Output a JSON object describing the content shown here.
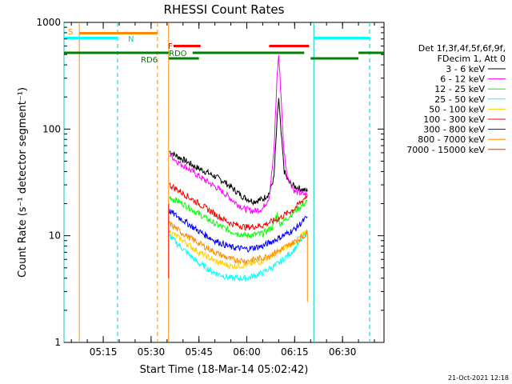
{
  "chart_data": {
    "type": "line",
    "title": "RHESSI Count Rates",
    "xlabel": "Start Time (18-Mar-14 05:02:42)",
    "ylabel": "Count Rate (s⁻¹ detector segment⁻¹)",
    "yscale": "log",
    "ylim": [
      1,
      1000
    ],
    "xlim": [
      "05:02:42",
      "06:43:00"
    ],
    "x_ticks": [
      "05:15",
      "05:30",
      "05:45",
      "06:00",
      "06:15",
      "06:30"
    ],
    "y_ticks": [
      "1",
      "10",
      "100",
      "1000"
    ],
    "footer_date": "21-Oct-2021 12:18",
    "legend": {
      "placement": "right",
      "header": [
        "Det 1f,3f,4f,5f,6f,9f,",
        "FDecim 1, Att 0"
      ]
    },
    "series": [
      {
        "name": "3 - 6 keV",
        "color": "#000000",
        "points": [
          [
            "05:35:45",
            62
          ],
          [
            "05:38:00",
            56
          ],
          [
            "05:41:00",
            50
          ],
          [
            "05:44:00",
            44
          ],
          [
            "05:47:00",
            40
          ],
          [
            "05:50:00",
            36
          ],
          [
            "05:53:00",
            32
          ],
          [
            "05:56:00",
            27
          ],
          [
            "05:59:00",
            23
          ],
          [
            "06:02:00",
            21
          ],
          [
            "06:05:00",
            22
          ],
          [
            "06:07:00",
            25
          ],
          [
            "06:08:30",
            35
          ],
          [
            "06:09:30",
            120
          ],
          [
            "06:10:00",
            195
          ],
          [
            "06:10:45",
            90
          ],
          [
            "06:11:45",
            40
          ],
          [
            "06:13:00",
            32
          ],
          [
            "06:15:00",
            29
          ],
          [
            "06:19:00",
            26
          ]
        ]
      },
      {
        "name": "6 - 12 keV",
        "color": "#ff00ff",
        "points": [
          [
            "05:35:45",
            58
          ],
          [
            "05:38:00",
            50
          ],
          [
            "05:41:00",
            44
          ],
          [
            "05:44:00",
            38
          ],
          [
            "05:47:00",
            33
          ],
          [
            "05:50:00",
            29
          ],
          [
            "05:53:00",
            25
          ],
          [
            "05:56:00",
            21
          ],
          [
            "05:59:00",
            18
          ],
          [
            "06:02:00",
            17
          ],
          [
            "06:05:00",
            18
          ],
          [
            "06:07:00",
            23
          ],
          [
            "06:08:30",
            60
          ],
          [
            "06:09:30",
            320
          ],
          [
            "06:10:00",
            500
          ],
          [
            "06:10:45",
            200
          ],
          [
            "06:11:30",
            70
          ],
          [
            "06:12:30",
            38
          ],
          [
            "06:15:00",
            26
          ],
          [
            "06:19:00",
            24
          ]
        ]
      },
      {
        "name": "12 - 25 keV",
        "color": "#00ff00",
        "points": [
          [
            "05:35:45",
            23
          ],
          [
            "05:40:00",
            20
          ],
          [
            "05:45:00",
            16
          ],
          [
            "05:50:00",
            13
          ],
          [
            "05:55:00",
            11
          ],
          [
            "06:00:00",
            10
          ],
          [
            "06:05:00",
            10.5
          ],
          [
            "06:08:00",
            12
          ],
          [
            "06:09:30",
            16
          ],
          [
            "06:10:15",
            13
          ],
          [
            "06:12:00",
            14
          ],
          [
            "06:15:00",
            17
          ],
          [
            "06:19:00",
            21
          ]
        ]
      },
      {
        "name": "25 - 50 keV",
        "color": "#00ffff",
        "points": [
          [
            "05:35:45",
            10
          ],
          [
            "05:40:00",
            7.5
          ],
          [
            "05:45:00",
            5.5
          ],
          [
            "05:50:00",
            4.5
          ],
          [
            "05:55:00",
            4
          ],
          [
            "06:00:00",
            4
          ],
          [
            "06:05:00",
            4.5
          ],
          [
            "06:10:00",
            5.5
          ],
          [
            "06:15:00",
            7.5
          ],
          [
            "06:19:00",
            11
          ]
        ]
      },
      {
        "name": "50 - 100 keV",
        "color": "#ffd000",
        "points": [
          [
            "05:35:45",
            11
          ],
          [
            "05:40:00",
            9
          ],
          [
            "05:45:00",
            7
          ],
          [
            "05:50:00",
            5.8
          ],
          [
            "05:55:00",
            5.2
          ],
          [
            "06:00:00",
            5.3
          ],
          [
            "06:05:00",
            5.8
          ],
          [
            "06:10:00",
            7
          ],
          [
            "06:15:00",
            8.8
          ],
          [
            "06:19:00",
            11
          ]
        ]
      },
      {
        "name": "100 - 300 keV",
        "color": "#ff0000",
        "points": [
          [
            "05:35:45",
            30
          ],
          [
            "05:40:00",
            25
          ],
          [
            "05:45:00",
            20
          ],
          [
            "05:50:00",
            16
          ],
          [
            "05:55:00",
            13
          ],
          [
            "06:00:00",
            12
          ],
          [
            "06:05:00",
            12.5
          ],
          [
            "06:10:00",
            14.5
          ],
          [
            "06:15:00",
            18
          ],
          [
            "06:19:00",
            24
          ]
        ]
      },
      {
        "name": "300 - 800 keV",
        "color": "#0000ff",
        "points": [
          [
            "05:35:45",
            17
          ],
          [
            "05:40:00",
            14
          ],
          [
            "05:45:00",
            11
          ],
          [
            "05:50:00",
            9
          ],
          [
            "05:55:00",
            7.8
          ],
          [
            "06:00:00",
            7.5
          ],
          [
            "06:05:00",
            8
          ],
          [
            "06:10:00",
            9.5
          ],
          [
            "06:15:00",
            11.5
          ],
          [
            "06:19:00",
            15
          ]
        ]
      },
      {
        "name": "800 - 7000 keV",
        "color": "#ff8c00",
        "points": [
          [
            "05:35:45",
            13
          ],
          [
            "05:40:00",
            10.5
          ],
          [
            "05:45:00",
            8.5
          ],
          [
            "05:50:00",
            7
          ],
          [
            "05:55:00",
            6
          ],
          [
            "06:00:00",
            5.8
          ],
          [
            "06:05:00",
            6.2
          ],
          [
            "06:10:00",
            7.2
          ],
          [
            "06:15:00",
            8.8
          ],
          [
            "06:19:00",
            10.5
          ]
        ]
      },
      {
        "name": "7000 - 15000 keV",
        "color": "#a0522d",
        "points": []
      }
    ],
    "flag_labels": [
      {
        "text": "S",
        "color": "#ff8c00"
      },
      {
        "text": "N",
        "color": "#00ffff"
      },
      {
        "text": "F",
        "color": "#ff0000"
      },
      {
        "text": "RDO",
        "color": "#008000"
      },
      {
        "text": "RD6",
        "color": "#008000"
      }
    ]
  }
}
